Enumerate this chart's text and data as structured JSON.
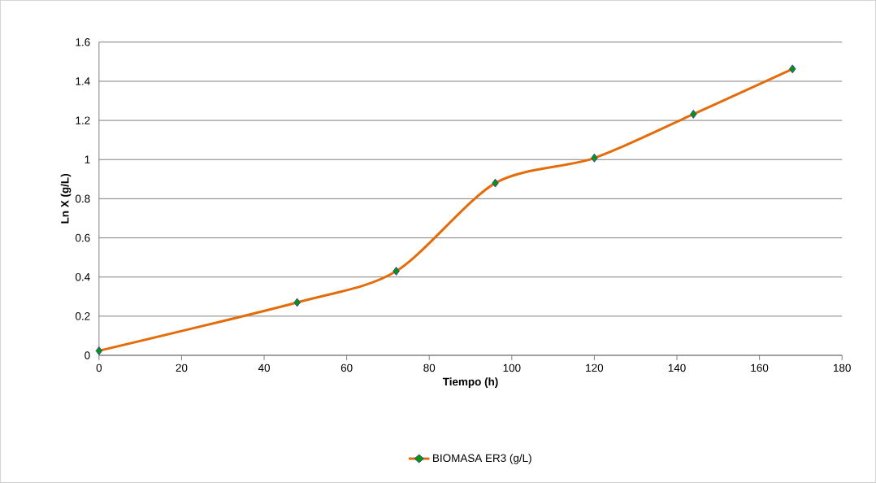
{
  "chart_data": {
    "type": "line",
    "xlabel": "Tiempo (h)",
    "ylabel": "Ln X  (g/L)",
    "x": [
      0,
      48,
      72,
      96,
      120,
      144,
      168
    ],
    "series": [
      {
        "name": "BIOMASA ER3 (g/L)",
        "color": "#e46c0a",
        "values": [
          0.023,
          0.27,
          0.43,
          0.88,
          1.008,
          1.232,
          1.463
        ]
      }
    ],
    "xlim": [
      0,
      180
    ],
    "xticks": [
      0,
      20,
      40,
      60,
      80,
      100,
      120,
      140,
      160,
      180
    ],
    "ylim": [
      0,
      1.6
    ],
    "yticks": [
      0,
      0.2,
      0.4,
      0.6,
      0.8,
      1,
      1.2,
      1.4,
      1.6
    ],
    "grid": "y",
    "legend": "bottom",
    "marker": "diamond",
    "line_style": "solid"
  }
}
